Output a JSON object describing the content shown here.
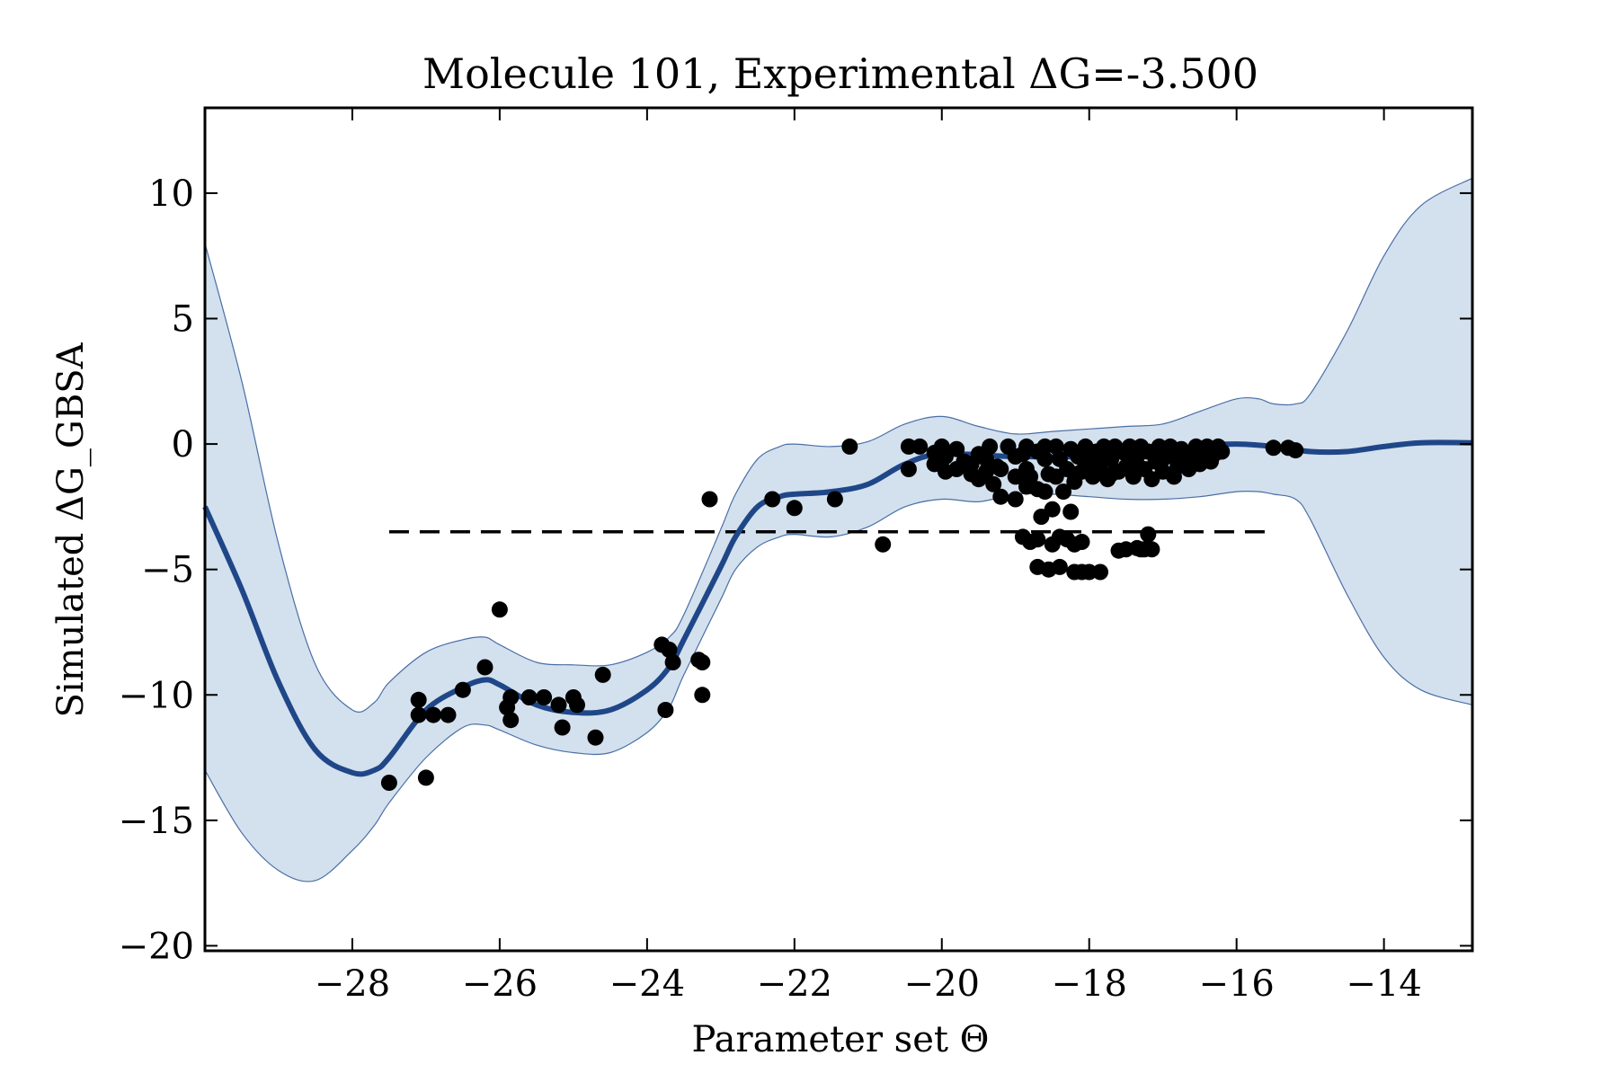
{
  "chart_data": {
    "type": "line",
    "title": "Molecule 101, Experimental ΔG=-3.500",
    "xlabel": "Parameter set Θ",
    "ylabel": "Simulated ΔG_GBSA",
    "xlim": [
      -30,
      -12.8
    ],
    "ylim": [
      -20.2,
      13.4
    ],
    "x_ticks": [
      -28,
      -26,
      -24,
      -22,
      -20,
      -18,
      -16,
      -14
    ],
    "x_tick_labels": [
      "−28",
      "−26",
      "−24",
      "−22",
      "−20",
      "−18",
      "−16",
      "−14"
    ],
    "y_ticks": [
      10,
      5,
      0,
      -5,
      -10,
      -15,
      -20
    ],
    "y_tick_labels": [
      "10",
      "5",
      "0",
      "−5",
      "−10",
      "−15",
      "−20"
    ],
    "grid": false,
    "colors": {
      "mean_line": "#1f4788",
      "band_fill": "#d3e0ee",
      "band_edge": "#4a6fa5",
      "points": "#000000",
      "reference": "#000000"
    },
    "series": [
      {
        "kind": "mean",
        "x": [
          -30,
          -29.5,
          -29,
          -28.5,
          -28,
          -27.7,
          -27.5,
          -27,
          -26.5,
          -26.2,
          -26,
          -25.5,
          -25,
          -24.5,
          -24,
          -23.7,
          -23.5,
          -23,
          -22.8,
          -22.5,
          -22.2,
          -22,
          -21.5,
          -21,
          -20.5,
          -20,
          -19,
          -18,
          -17,
          -16.5,
          -16,
          -15.5,
          -15,
          -14.5,
          -14,
          -13.5,
          -12.8
        ],
        "y": [
          -2.5,
          -5.8,
          -9.5,
          -12.2,
          -13.1,
          -13.0,
          -12.5,
          -10.6,
          -9.7,
          -9.4,
          -9.6,
          -10.4,
          -10.7,
          -10.6,
          -9.8,
          -8.9,
          -7.8,
          -4.9,
          -3.7,
          -2.5,
          -2.1,
          -2.0,
          -1.9,
          -1.6,
          -0.8,
          -0.4,
          -0.5,
          -0.5,
          -0.45,
          -0.1,
          0.0,
          -0.1,
          -0.3,
          -0.3,
          -0.1,
          0.05,
          0.05
        ]
      },
      {
        "kind": "upper_bound",
        "x": [
          -30,
          -29.5,
          -29,
          -28.5,
          -28,
          -27.7,
          -27.5,
          -27,
          -26.5,
          -26.2,
          -26,
          -25.5,
          -25,
          -24.5,
          -24,
          -23.7,
          -23.5,
          -23,
          -22.8,
          -22.5,
          -22.2,
          -22,
          -21.5,
          -21,
          -20.5,
          -20,
          -19.5,
          -19,
          -18.5,
          -18,
          -17.5,
          -17,
          -16.5,
          -16,
          -15.7,
          -15.5,
          -15.2,
          -15,
          -14.5,
          -14,
          -13.5,
          -12.8
        ],
        "y": [
          8,
          2.5,
          -4,
          -8.8,
          -10.6,
          -10.3,
          -9.5,
          -8.3,
          -7.8,
          -7.7,
          -8.0,
          -8.7,
          -8.8,
          -8.8,
          -8.3,
          -7.7,
          -6.8,
          -3.4,
          -2.0,
          -0.6,
          -0.1,
          0.0,
          -0.1,
          0.1,
          0.8,
          1.1,
          0.7,
          0.4,
          0.5,
          0.6,
          0.7,
          0.8,
          1.3,
          1.8,
          1.8,
          1.6,
          1.6,
          2.0,
          4.5,
          7.5,
          9.5,
          10.6
        ]
      },
      {
        "kind": "lower_bound",
        "x": [
          -30,
          -29.5,
          -29,
          -28.5,
          -28,
          -27.7,
          -27.5,
          -27,
          -26.5,
          -26.2,
          -26,
          -25.5,
          -25,
          -24.5,
          -24,
          -23.7,
          -23.5,
          -23,
          -22.8,
          -22.5,
          -22.2,
          -22,
          -21.5,
          -21,
          -20.5,
          -20,
          -19.5,
          -19,
          -18.5,
          -18,
          -17.5,
          -17,
          -16.5,
          -16,
          -15.7,
          -15.5,
          -15.2,
          -15,
          -14.5,
          -14,
          -13.5,
          -12.8
        ],
        "y": [
          -13,
          -15.5,
          -17,
          -17.4,
          -16.2,
          -15.2,
          -14.3,
          -12.5,
          -11.3,
          -11.2,
          -11.4,
          -12.0,
          -12.3,
          -12.3,
          -11.5,
          -10.5,
          -9.2,
          -6.2,
          -5.0,
          -4.1,
          -3.7,
          -3.6,
          -3.7,
          -3.3,
          -2.5,
          -2.2,
          -2.3,
          -2.0,
          -2.0,
          -2.1,
          -2.2,
          -2.2,
          -2.1,
          -1.9,
          -1.9,
          -2.0,
          -2.2,
          -3.0,
          -6.0,
          -8.5,
          -9.8,
          -10.4
        ]
      }
    ],
    "reference_line": {
      "y": -3.5,
      "x": [
        -27.5,
        -15.5
      ],
      "style": "dashed"
    },
    "points": [
      [
        -27.5,
        -13.5
      ],
      [
        -27.0,
        -13.3
      ],
      [
        -27.1,
        -10.2
      ],
      [
        -27.1,
        -10.8
      ],
      [
        -26.9,
        -10.8
      ],
      [
        -26.7,
        -10.8
      ],
      [
        -26.5,
        -9.8
      ],
      [
        -26.2,
        -8.9
      ],
      [
        -26.0,
        -6.6
      ],
      [
        -25.9,
        -10.5
      ],
      [
        -25.85,
        -11.0
      ],
      [
        -25.85,
        -10.1
      ],
      [
        -25.6,
        -10.1
      ],
      [
        -25.4,
        -10.1
      ],
      [
        -25.2,
        -10.4
      ],
      [
        -25.15,
        -11.3
      ],
      [
        -25.0,
        -10.1
      ],
      [
        -24.95,
        -10.4
      ],
      [
        -24.7,
        -11.7
      ],
      [
        -24.6,
        -9.2
      ],
      [
        -23.8,
        -8.0
      ],
      [
        -23.7,
        -8.2
      ],
      [
        -23.75,
        -10.6
      ],
      [
        -23.65,
        -8.7
      ],
      [
        -23.3,
        -8.6
      ],
      [
        -23.25,
        -8.7
      ],
      [
        -23.25,
        -10.0
      ],
      [
        -23.15,
        -2.2
      ],
      [
        -22.3,
        -2.2
      ],
      [
        -22.0,
        -2.55
      ],
      [
        -21.45,
        -2.2
      ],
      [
        -21.25,
        -0.1
      ],
      [
        -20.8,
        -4.0
      ],
      [
        -20.45,
        -0.1
      ],
      [
        -20.45,
        -1.0
      ],
      [
        -20.3,
        -0.1
      ],
      [
        -20.1,
        -0.35
      ],
      [
        -20.0,
        -0.1
      ],
      [
        -19.95,
        -0.5
      ],
      [
        -19.95,
        -1.1
      ],
      [
        -19.8,
        -0.2
      ],
      [
        -19.7,
        -0.7
      ],
      [
        -19.6,
        -1.2
      ],
      [
        -19.5,
        -1.4
      ],
      [
        -19.5,
        -0.4
      ],
      [
        -19.4,
        -1.1
      ],
      [
        -19.35,
        -0.1
      ],
      [
        -19.3,
        -1.6
      ],
      [
        -19.25,
        -0.9
      ],
      [
        -19.2,
        -2.1
      ],
      [
        -19.1,
        -0.1
      ],
      [
        -19.0,
        -2.2
      ],
      [
        -19.0,
        -0.5
      ],
      [
        -19.0,
        -1.3
      ],
      [
        -18.9,
        -3.7
      ],
      [
        -18.85,
        -0.1
      ],
      [
        -18.85,
        -1.7
      ],
      [
        -18.85,
        -1.0
      ],
      [
        -18.8,
        -3.9
      ],
      [
        -18.7,
        -0.3
      ],
      [
        -18.7,
        -1.8
      ],
      [
        -18.7,
        -4.9
      ],
      [
        -18.7,
        -3.8
      ],
      [
        -18.65,
        -2.9
      ],
      [
        -18.6,
        -0.6
      ],
      [
        -18.6,
        -1.9
      ],
      [
        -18.55,
        -5.0
      ],
      [
        -18.55,
        -1.2
      ],
      [
        -18.5,
        -2.6
      ],
      [
        -18.5,
        -4.0
      ],
      [
        -18.45,
        -0.1
      ],
      [
        -18.45,
        -1.3
      ],
      [
        -18.4,
        -3.7
      ],
      [
        -18.4,
        -4.9
      ],
      [
        -18.35,
        -1.9
      ],
      [
        -18.3,
        -1.0
      ],
      [
        -18.3,
        -3.8
      ],
      [
        -18.25,
        -0.2
      ],
      [
        -18.25,
        -2.7
      ],
      [
        -18.2,
        -1.5
      ],
      [
        -18.2,
        -4.0
      ],
      [
        -18.15,
        -0.5
      ],
      [
        -18.1,
        -1.1
      ],
      [
        -18.1,
        -3.9
      ],
      [
        -18.05,
        -0.1
      ],
      [
        -18.0,
        -0.9
      ],
      [
        -17.95,
        -1.3
      ],
      [
        -17.9,
        -0.3
      ],
      [
        -17.85,
        -1.0
      ],
      [
        -17.8,
        -0.1
      ],
      [
        -17.75,
        -1.4
      ],
      [
        -17.7,
        -0.6
      ],
      [
        -17.65,
        -0.1
      ],
      [
        -17.6,
        -1.1
      ],
      [
        -17.55,
        -0.3
      ],
      [
        -17.5,
        -0.9
      ],
      [
        -17.45,
        -0.1
      ],
      [
        -17.4,
        -1.3
      ],
      [
        -17.35,
        -0.5
      ],
      [
        -17.3,
        -0.1
      ],
      [
        -17.25,
        -1.0
      ],
      [
        -17.2,
        -0.3
      ],
      [
        -17.15,
        -1.4
      ],
      [
        -17.1,
        -0.7
      ],
      [
        -17.05,
        -0.1
      ],
      [
        -17.0,
        -1.1
      ],
      [
        -16.95,
        -0.5
      ],
      [
        -16.9,
        -0.1
      ],
      [
        -16.85,
        -1.3
      ],
      [
        -16.8,
        -0.9
      ],
      [
        -16.75,
        -0.2
      ],
      [
        -16.7,
        -0.6
      ],
      [
        -16.65,
        -1.0
      ],
      [
        -16.6,
        -0.3
      ],
      [
        -16.55,
        -0.1
      ],
      [
        -16.5,
        -0.8
      ],
      [
        -16.45,
        -0.5
      ],
      [
        -16.4,
        -0.1
      ],
      [
        -16.35,
        -0.7
      ],
      [
        -16.3,
        -0.4
      ],
      [
        -16.25,
        -0.1
      ],
      [
        -16.2,
        -0.3
      ],
      [
        -17.3,
        -4.2
      ],
      [
        -17.35,
        -4.15
      ],
      [
        -17.25,
        -4.2
      ],
      [
        -17.5,
        -4.2
      ],
      [
        -17.6,
        -4.25
      ],
      [
        -17.85,
        -5.1
      ],
      [
        -18.0,
        -5.1
      ],
      [
        -18.1,
        -5.1
      ],
      [
        -18.2,
        -5.1
      ],
      [
        -17.2,
        -3.6
      ],
      [
        -17.15,
        -4.2
      ],
      [
        -15.5,
        -0.15
      ],
      [
        -15.3,
        -0.15
      ],
      [
        -15.2,
        -0.25
      ],
      [
        -18.6,
        -0.1
      ],
      [
        -18.4,
        -0.6
      ],
      [
        -18.2,
        -1.2
      ],
      [
        -17.9,
        -0.7
      ],
      [
        -17.7,
        -1.2
      ],
      [
        -17.5,
        -0.4
      ],
      [
        -19.4,
        -0.6
      ],
      [
        -19.6,
        -0.8
      ],
      [
        -19.2,
        -1.0
      ],
      [
        -18.9,
        -0.4
      ],
      [
        -18.8,
        -1.3
      ],
      [
        -19.8,
        -1.0
      ],
      [
        -20.1,
        -0.8
      ],
      [
        -18.0,
        -0.5
      ],
      [
        -17.8,
        -0.3
      ],
      [
        -17.4,
        -0.7
      ],
      [
        -17.0,
        -0.6
      ],
      [
        -16.8,
        -0.4
      ]
    ]
  }
}
